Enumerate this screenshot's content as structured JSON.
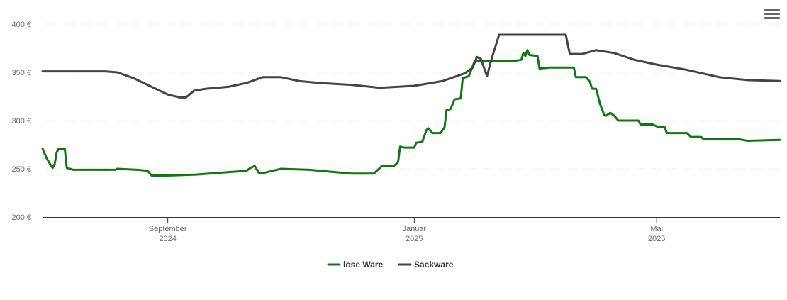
{
  "menu": {
    "icon": "hamburger-menu-icon"
  },
  "chart_data": {
    "type": "line",
    "title": "",
    "xlabel": "",
    "ylabel": "",
    "x_range": [
      "2024-07-01",
      "2025-07-01"
    ],
    "ylim": [
      200,
      400
    ],
    "y_ticks": [
      {
        "value": 200,
        "label": "200 €"
      },
      {
        "value": 250,
        "label": "250 €"
      },
      {
        "value": 300,
        "label": "300 €"
      },
      {
        "value": 350,
        "label": "350 €"
      },
      {
        "value": 400,
        "label": "400 €"
      }
    ],
    "x_ticks": [
      {
        "date": "2024-09-01",
        "line1": "September",
        "line2": "2024"
      },
      {
        "date": "2025-01-01",
        "line1": "Januar",
        "line2": "2025"
      },
      {
        "date": "2025-05-01",
        "line1": "Mai",
        "line2": "2025"
      }
    ],
    "grid": true,
    "legend_position": "bottom-center",
    "series": [
      {
        "name": "lose Ware",
        "color": "#117811",
        "points": [
          [
            "2024-07-01",
            271
          ],
          [
            "2024-07-03",
            261
          ],
          [
            "2024-07-05",
            254
          ],
          [
            "2024-07-06",
            251
          ],
          [
            "2024-07-07",
            255
          ],
          [
            "2024-07-08",
            267
          ],
          [
            "2024-07-09",
            271
          ],
          [
            "2024-07-12",
            271
          ],
          [
            "2024-07-13",
            251
          ],
          [
            "2024-07-16",
            249
          ],
          [
            "2024-08-06",
            249
          ],
          [
            "2024-08-07",
            250
          ],
          [
            "2024-08-17",
            249
          ],
          [
            "2024-08-22",
            248
          ],
          [
            "2024-08-24",
            243
          ],
          [
            "2024-09-01",
            243
          ],
          [
            "2024-09-15",
            244
          ],
          [
            "2024-10-10",
            248
          ],
          [
            "2024-10-12",
            251
          ],
          [
            "2024-10-14",
            253
          ],
          [
            "2024-10-16",
            246
          ],
          [
            "2024-10-19",
            246
          ],
          [
            "2024-10-27",
            250
          ],
          [
            "2024-11-10",
            249
          ],
          [
            "2024-12-01",
            245
          ],
          [
            "2024-12-12",
            245
          ],
          [
            "2024-12-14",
            249
          ],
          [
            "2024-12-16",
            253
          ],
          [
            "2024-12-22",
            253
          ],
          [
            "2024-12-24",
            257
          ],
          [
            "2024-12-25",
            273
          ],
          [
            "2024-12-27",
            272
          ],
          [
            "2025-01-01",
            272
          ],
          [
            "2025-01-02",
            277
          ],
          [
            "2025-01-05",
            278
          ],
          [
            "2025-01-07",
            290
          ],
          [
            "2025-01-08",
            292
          ],
          [
            "2025-01-10",
            287
          ],
          [
            "2025-01-14",
            287
          ],
          [
            "2025-01-16",
            293
          ],
          [
            "2025-01-17",
            311
          ],
          [
            "2025-01-19",
            312
          ],
          [
            "2025-01-21",
            322
          ],
          [
            "2025-01-24",
            323
          ],
          [
            "2025-01-25",
            344
          ],
          [
            "2025-01-28",
            346
          ],
          [
            "2025-01-31",
            362
          ],
          [
            "2025-02-20",
            362
          ],
          [
            "2025-02-23",
            363
          ],
          [
            "2025-02-24",
            370
          ],
          [
            "2025-02-25",
            367
          ],
          [
            "2025-02-26",
            373
          ],
          [
            "2025-02-27",
            368
          ],
          [
            "2025-03-03",
            367
          ],
          [
            "2025-03-04",
            354
          ],
          [
            "2025-03-09",
            355
          ],
          [
            "2025-03-21",
            355
          ],
          [
            "2025-03-22",
            345
          ],
          [
            "2025-03-27",
            345
          ],
          [
            "2025-03-29",
            340
          ],
          [
            "2025-03-30",
            333
          ],
          [
            "2025-04-01",
            333
          ],
          [
            "2025-04-03",
            317
          ],
          [
            "2025-04-05",
            306
          ],
          [
            "2025-04-06",
            305
          ],
          [
            "2025-04-08",
            308
          ],
          [
            "2025-04-10",
            305
          ],
          [
            "2025-04-12",
            300
          ],
          [
            "2025-04-22",
            300
          ],
          [
            "2025-04-23",
            296
          ],
          [
            "2025-04-29",
            296
          ],
          [
            "2025-04-30",
            295
          ],
          [
            "2025-05-02",
            293
          ],
          [
            "2025-05-05",
            293
          ],
          [
            "2025-05-06",
            287
          ],
          [
            "2025-05-16",
            287
          ],
          [
            "2025-05-18",
            283
          ],
          [
            "2025-05-23",
            283
          ],
          [
            "2025-05-24",
            281
          ],
          [
            "2025-06-10",
            281
          ],
          [
            "2025-06-15",
            279
          ],
          [
            "2025-07-01",
            280
          ]
        ]
      },
      {
        "name": "Sackware",
        "color": "#434348",
        "points": [
          [
            "2024-07-01",
            351
          ],
          [
            "2024-08-01",
            351
          ],
          [
            "2024-08-07",
            350
          ],
          [
            "2024-08-15",
            344
          ],
          [
            "2024-08-25",
            334
          ],
          [
            "2024-09-01",
            327
          ],
          [
            "2024-09-07",
            324
          ],
          [
            "2024-09-10",
            324
          ],
          [
            "2024-09-14",
            331
          ],
          [
            "2024-09-20",
            333
          ],
          [
            "2024-10-01",
            335
          ],
          [
            "2024-10-10",
            339
          ],
          [
            "2024-10-18",
            345
          ],
          [
            "2024-10-27",
            345
          ],
          [
            "2024-11-05",
            341
          ],
          [
            "2024-11-15",
            339
          ],
          [
            "2024-12-01",
            337
          ],
          [
            "2024-12-15",
            334
          ],
          [
            "2025-01-01",
            336
          ],
          [
            "2025-01-15",
            341
          ],
          [
            "2025-01-26",
            349
          ],
          [
            "2025-01-30",
            355
          ],
          [
            "2025-02-01",
            366
          ],
          [
            "2025-02-03",
            364
          ],
          [
            "2025-02-06",
            346
          ],
          [
            "2025-02-08",
            362
          ],
          [
            "2025-02-12",
            389
          ],
          [
            "2025-03-17",
            389
          ],
          [
            "2025-03-19",
            369
          ],
          [
            "2025-03-25",
            369
          ],
          [
            "2025-04-01",
            373
          ],
          [
            "2025-04-10",
            370
          ],
          [
            "2025-04-20",
            363
          ],
          [
            "2025-05-01",
            358
          ],
          [
            "2025-05-15",
            353
          ],
          [
            "2025-06-01",
            345
          ],
          [
            "2025-06-15",
            342
          ],
          [
            "2025-07-01",
            341
          ]
        ]
      }
    ]
  }
}
